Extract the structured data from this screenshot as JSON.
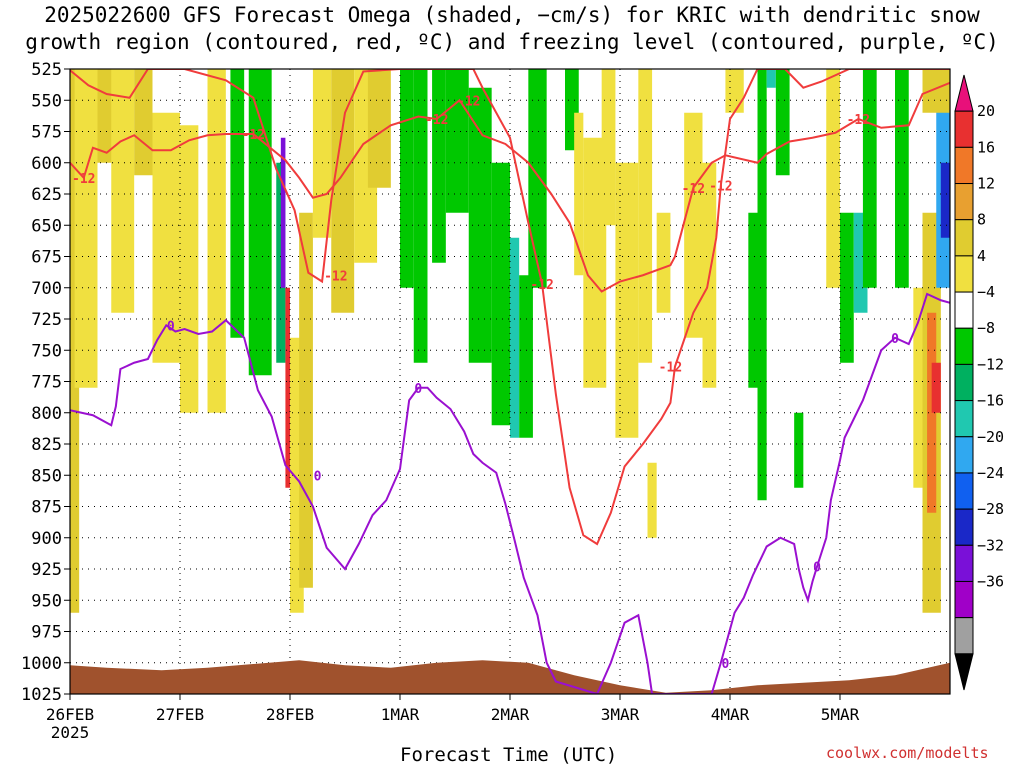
{
  "header": {
    "title_line1": "2025022600 GFS Forecast Omega (shaded, −cm/s) for KRIC with dendritic snow",
    "title_line2": "growth region (contoured, red, ºC) and freezing level (contoured, purple, ºC)"
  },
  "footer": {
    "xlabel": "Forecast Time (UTC)",
    "credit": "coolwx.com/modelts"
  },
  "chart_data": {
    "type": "heatmap",
    "title": "2025022600 GFS Forecast Omega (shaded, −cm/s) for KRIC with dendritic snow growth region (contoured, red, ºC) and freezing level (contoured, purple, ºC)",
    "xlabel": "Forecast Time (UTC)",
    "ylabel": "",
    "x_ticks": [
      "26FEB",
      "27FEB",
      "28FEB",
      "1MAR",
      "2MAR",
      "3MAR",
      "4MAR",
      "5MAR"
    ],
    "x_tick_sublabel": "2025",
    "x_range_hours": [
      0,
      192
    ],
    "y_ticks": [
      525,
      550,
      575,
      600,
      625,
      650,
      675,
      700,
      725,
      750,
      775,
      800,
      825,
      850,
      875,
      900,
      925,
      950,
      975,
      1000,
      1025
    ],
    "y_range": [
      525,
      1025
    ],
    "y_inverted": true,
    "grid": true,
    "colorbar": {
      "levels": [
        20,
        16,
        12,
        8,
        4,
        -4,
        -8,
        -12,
        -16,
        -20,
        -24,
        -28,
        -32,
        -36
      ],
      "colors": [
        "#e8107a",
        "#e83030",
        "#f07828",
        "#e8a030",
        "#e0cc30",
        "#f0e040",
        "#ffffff",
        "#00c800",
        "#00b060",
        "#20c8b0",
        "#30a8f0",
        "#1060f0",
        "#1a28c8",
        "#7a10d8",
        "#a000c8",
        "#a0a0a0",
        "#000000"
      ],
      "labels": [
        "20",
        "16",
        "12",
        "8",
        "4",
        "−4",
        "−8",
        "−12",
        "−16",
        "−20",
        "−24",
        "−28",
        "−32",
        "−36"
      ]
    },
    "freezing_level_0C": {
      "color": "#9a10d0",
      "label": "0",
      "points": [
        [
          0,
          798
        ],
        [
          5,
          802
        ],
        [
          9,
          810
        ],
        [
          10,
          795
        ],
        [
          11,
          765
        ],
        [
          14,
          760
        ],
        [
          17,
          757
        ],
        [
          19,
          742
        ],
        [
          21,
          730
        ],
        [
          23,
          735
        ],
        [
          25,
          733
        ],
        [
          28,
          737
        ],
        [
          31,
          735
        ],
        [
          34,
          726
        ],
        [
          38,
          740
        ],
        [
          41,
          782
        ],
        [
          44,
          803
        ],
        [
          47,
          842
        ],
        [
          50,
          855
        ],
        [
          53,
          875
        ],
        [
          56,
          908
        ],
        [
          60,
          925
        ],
        [
          63,
          905
        ],
        [
          66,
          882
        ],
        [
          69,
          870
        ],
        [
          72,
          845
        ],
        [
          74,
          790
        ],
        [
          76,
          780
        ],
        [
          78,
          780
        ],
        [
          80,
          788
        ],
        [
          83,
          797
        ],
        [
          86,
          815
        ],
        [
          88,
          833
        ],
        [
          90,
          840
        ],
        [
          93,
          848
        ],
        [
          95,
          873
        ],
        [
          97,
          902
        ],
        [
          99,
          932
        ],
        [
          102,
          962
        ],
        [
          104,
          1000
        ],
        [
          106,
          1015
        ],
        [
          115,
          1025
        ],
        [
          118,
          1000
        ],
        [
          121,
          968
        ],
        [
          124,
          962
        ],
        [
          126,
          1000
        ],
        [
          127,
          1025
        ],
        [
          140,
          1025
        ],
        [
          142,
          1000
        ],
        [
          145,
          960
        ],
        [
          147,
          948
        ],
        [
          149,
          930
        ],
        [
          152,
          907
        ],
        [
          155,
          900
        ],
        [
          158,
          905
        ],
        [
          159,
          925
        ],
        [
          160,
          940
        ],
        [
          161,
          950
        ],
        [
          162,
          935
        ],
        [
          163,
          923
        ],
        [
          165,
          900
        ],
        [
          166,
          870
        ],
        [
          168,
          838
        ],
        [
          169,
          820
        ],
        [
          171,
          805
        ],
        [
          173,
          790
        ],
        [
          175,
          770
        ],
        [
          177,
          750
        ],
        [
          180,
          740
        ],
        [
          183,
          745
        ],
        [
          185,
          728
        ],
        [
          187,
          705
        ],
        [
          190,
          710
        ],
        [
          192,
          712
        ]
      ],
      "labels_at": [
        [
          22,
          730
        ],
        [
          54,
          850
        ],
        [
          76,
          780
        ],
        [
          143,
          1000
        ],
        [
          163,
          923
        ],
        [
          180,
          740
        ]
      ]
    },
    "dendritic_m12C_contour": {
      "color": "#f03c3c",
      "label": "-12",
      "upper_points": [
        [
          0,
          600
        ],
        [
          3,
          612
        ],
        [
          5,
          588
        ],
        [
          8,
          592
        ],
        [
          11,
          583
        ],
        [
          14,
          578
        ],
        [
          18,
          590
        ],
        [
          22,
          590
        ],
        [
          26,
          582
        ],
        [
          30,
          578
        ],
        [
          34,
          577
        ],
        [
          40,
          577
        ],
        [
          47,
          598
        ],
        [
          50,
          612
        ],
        [
          53,
          628
        ],
        [
          56,
          625
        ],
        [
          59,
          612
        ],
        [
          64,
          585
        ],
        [
          70,
          570
        ],
        [
          76,
          563
        ],
        [
          80,
          565
        ],
        [
          85,
          550
        ],
        [
          90,
          578
        ],
        [
          95,
          585
        ],
        [
          100,
          600
        ],
        [
          105,
          625
        ],
        [
          109,
          648
        ],
        [
          113,
          690
        ],
        [
          116,
          703
        ],
        [
          120,
          695
        ],
        [
          125,
          690
        ],
        [
          131,
          682
        ],
        [
          132,
          675
        ],
        [
          136,
          620
        ],
        [
          140,
          600
        ],
        [
          143,
          594
        ],
        [
          150,
          600
        ],
        [
          152,
          593
        ],
        [
          157,
          583
        ],
        [
          162,
          580
        ],
        [
          167,
          576
        ],
        [
          172,
          565
        ],
        [
          177,
          572
        ],
        [
          183,
          570
        ],
        [
          186,
          545
        ],
        [
          192,
          536
        ]
      ],
      "lower_points": [
        [
          0,
          526
        ],
        [
          4,
          538
        ],
        [
          8,
          545
        ],
        [
          13,
          548
        ],
        [
          17,
          525
        ],
        [
          25,
          525
        ],
        [
          34,
          534
        ],
        [
          40,
          548
        ],
        [
          45,
          605
        ],
        [
          49,
          638
        ],
        [
          52,
          688
        ],
        [
          55,
          695
        ],
        [
          57,
          630
        ],
        [
          60,
          560
        ],
        [
          64,
          527
        ],
        [
          72,
          525
        ],
        [
          88,
          525
        ],
        [
          90,
          540
        ],
        [
          96,
          580
        ],
        [
          100,
          648
        ],
        [
          103,
          697
        ],
        [
          106,
          785
        ],
        [
          109,
          860
        ],
        [
          112,
          898
        ],
        [
          115,
          905
        ],
        [
          118,
          880
        ],
        [
          121,
          843
        ],
        [
          125,
          825
        ],
        [
          129,
          805
        ],
        [
          131,
          792
        ],
        [
          132,
          763
        ],
        [
          136,
          720
        ],
        [
          139,
          700
        ],
        [
          141,
          660
        ],
        [
          142,
          618
        ],
        [
          144,
          565
        ],
        [
          147,
          548
        ],
        [
          150,
          525
        ],
        [
          156,
          525
        ],
        [
          160,
          540
        ],
        [
          164,
          535
        ],
        [
          170,
          525
        ],
        [
          192,
          525
        ]
      ],
      "labels_at": [
        [
          3,
          612
        ],
        [
          40,
          577
        ],
        [
          58,
          690
        ],
        [
          80,
          565
        ],
        [
          87,
          550
        ],
        [
          103,
          697
        ],
        [
          131,
          763
        ],
        [
          136,
          620
        ],
        [
          142,
          618
        ],
        [
          172,
          565
        ]
      ]
    }
  }
}
